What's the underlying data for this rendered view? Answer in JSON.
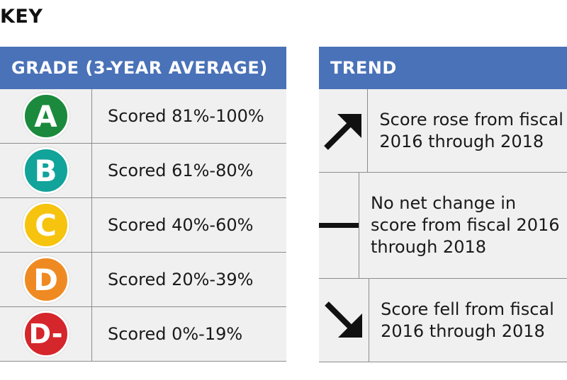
{
  "title": "KEY",
  "grade_table": {
    "header": "GRADE (3-YEAR AVERAGE)",
    "rows": [
      {
        "grade": "A",
        "color": "#1b8a3c",
        "label": "Scored 81%-100%"
      },
      {
        "grade": "B",
        "color": "#12a39a",
        "label": "Scored 61%-80%"
      },
      {
        "grade": "C",
        "color": "#f6c30f",
        "label": "Scored 40%-60%"
      },
      {
        "grade": "D",
        "color": "#ef8a22",
        "label": "Scored 20%-39%"
      },
      {
        "grade": "D-",
        "color": "#d5262b",
        "label": "Scored 0%-19%"
      }
    ]
  },
  "trend_table": {
    "header": "TREND",
    "rows": [
      {
        "icon": "arrow-up-right-icon",
        "label": "Score rose from fiscal 2016 through 2018"
      },
      {
        "icon": "dash-icon",
        "label": "No net change in score from fiscal 2016 through 2018"
      },
      {
        "icon": "arrow-down-right-icon",
        "label": "Score fell from fiscal 2016 through 2018"
      }
    ]
  },
  "colors": {
    "header_bg": "#4a72b8",
    "row_bg": "#f0f0f0",
    "border": "#8c8c8c"
  }
}
